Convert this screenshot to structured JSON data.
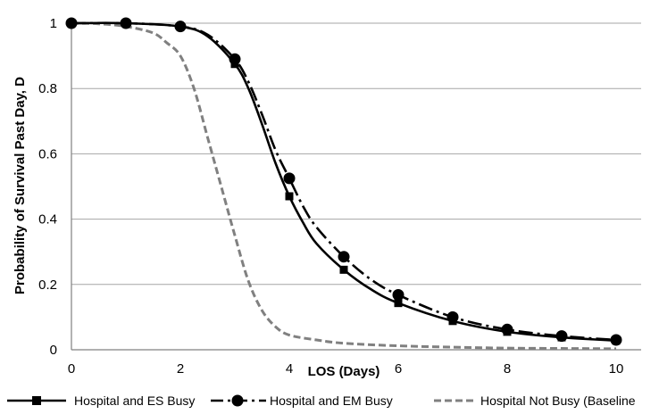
{
  "chart_data": {
    "type": "line",
    "title": "",
    "xlabel": "LOS (Days)",
    "ylabel": "Probability of Survival Past Day, D",
    "xlim": [
      0,
      10
    ],
    "ylim": [
      0,
      1
    ],
    "x_ticks": [
      0,
      2,
      4,
      6,
      8,
      10
    ],
    "y_ticks": [
      0,
      0.2,
      0.4,
      0.6,
      0.8,
      1
    ],
    "x_tick_labels": [
      "0",
      "2",
      "4",
      "6",
      "8",
      "10"
    ],
    "y_tick_labels": [
      "0",
      "0.2",
      "0.4",
      "0.6",
      "0.8",
      "1"
    ],
    "grid": "horizontal",
    "legend_position": "bottom",
    "series": [
      {
        "name": "Hospital and ES Busy",
        "style": "solid",
        "marker": "square",
        "color": "#000000",
        "curve": [
          [
            0,
            1.0
          ],
          [
            1,
            1.0
          ],
          [
            2,
            0.99
          ],
          [
            2.5,
            0.96
          ],
          [
            3,
            0.875
          ],
          [
            3.25,
            0.8
          ],
          [
            3.5,
            0.69
          ],
          [
            3.75,
            0.57
          ],
          [
            4,
            0.47
          ],
          [
            4.25,
            0.39
          ],
          [
            4.5,
            0.325
          ],
          [
            5,
            0.245
          ],
          [
            5.5,
            0.185
          ],
          [
            6,
            0.143
          ],
          [
            7,
            0.088
          ],
          [
            8,
            0.055
          ],
          [
            9,
            0.038
          ],
          [
            10,
            0.028
          ]
        ],
        "markers": [
          [
            0,
            1.0
          ],
          [
            1,
            1.0
          ],
          [
            2,
            0.99
          ],
          [
            3,
            0.875
          ],
          [
            4,
            0.47
          ],
          [
            5,
            0.245
          ],
          [
            6,
            0.143
          ],
          [
            7,
            0.088
          ],
          [
            8,
            0.055
          ],
          [
            9,
            0.038
          ],
          [
            10,
            0.028
          ]
        ]
      },
      {
        "name": "Hospital and EM Busy",
        "style": "dash-dot",
        "marker": "circle",
        "color": "#000000",
        "curve": [
          [
            0,
            1.0
          ],
          [
            1,
            1.0
          ],
          [
            2,
            0.99
          ],
          [
            2.5,
            0.965
          ],
          [
            3,
            0.89
          ],
          [
            3.25,
            0.82
          ],
          [
            3.5,
            0.72
          ],
          [
            3.75,
            0.61
          ],
          [
            4,
            0.525
          ],
          [
            4.25,
            0.44
          ],
          [
            4.5,
            0.375
          ],
          [
            5,
            0.285
          ],
          [
            5.5,
            0.215
          ],
          [
            6,
            0.168
          ],
          [
            7,
            0.1
          ],
          [
            8,
            0.062
          ],
          [
            9,
            0.042
          ],
          [
            10,
            0.03
          ]
        ],
        "markers": [
          [
            0,
            1.0
          ],
          [
            1,
            1.0
          ],
          [
            2,
            0.99
          ],
          [
            3,
            0.89
          ],
          [
            4,
            0.525
          ],
          [
            5,
            0.285
          ],
          [
            6,
            0.168
          ],
          [
            7,
            0.1
          ],
          [
            8,
            0.062
          ],
          [
            9,
            0.042
          ],
          [
            10,
            0.03
          ]
        ]
      },
      {
        "name": "Hospital Not Busy (Baseline",
        "style": "dashed",
        "marker": "none",
        "color": "#808080",
        "curve": [
          [
            0,
            1.0
          ],
          [
            0.5,
            0.998
          ],
          [
            1,
            0.99
          ],
          [
            1.5,
            0.97
          ],
          [
            1.75,
            0.94
          ],
          [
            2,
            0.9
          ],
          [
            2.25,
            0.8
          ],
          [
            2.5,
            0.65
          ],
          [
            2.75,
            0.5
          ],
          [
            3,
            0.35
          ],
          [
            3.25,
            0.21
          ],
          [
            3.5,
            0.12
          ],
          [
            3.75,
            0.07
          ],
          [
            4,
            0.045
          ],
          [
            4.5,
            0.03
          ],
          [
            5,
            0.02
          ],
          [
            6,
            0.012
          ],
          [
            7,
            0.008
          ],
          [
            8,
            0.005
          ],
          [
            9,
            0.004
          ],
          [
            10,
            0.003
          ]
        ],
        "markers": []
      }
    ]
  }
}
